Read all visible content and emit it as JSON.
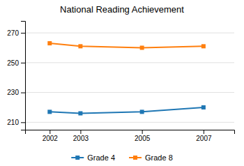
{
  "chart_data": {
    "type": "line",
    "title": "National Reading Achievement",
    "x": [
      2002,
      2003,
      2005,
      2007
    ],
    "series": [
      {
        "name": "Grade 4",
        "values": [
          217,
          216,
          217,
          220
        ]
      },
      {
        "name": "Grade 8",
        "values": [
          263,
          261,
          260,
          261
        ]
      }
    ],
    "xlim": [
      2001.2,
      2008.0
    ],
    "xticks": [
      2002,
      2003,
      2005,
      2007
    ],
    "ylim": [
      205,
      278
    ],
    "yticks": [
      210,
      230,
      250,
      270
    ],
    "grid": true,
    "legend": "bottom",
    "marker": "square"
  }
}
